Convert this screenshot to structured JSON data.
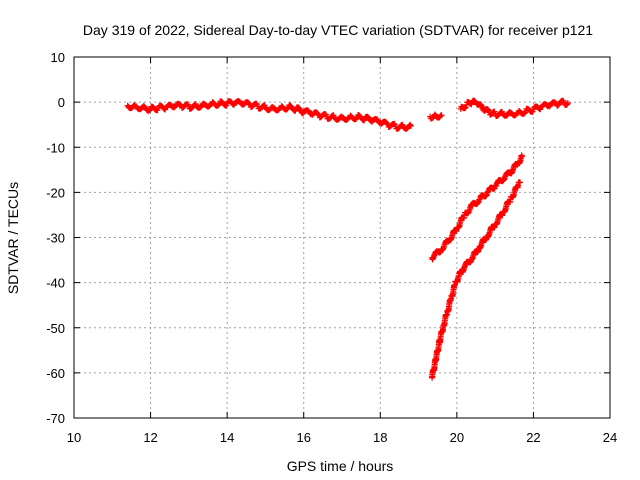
{
  "chart_data": {
    "type": "scatter",
    "title": "Day 319 of 2022, Sidereal Day-to-day VTEC variation (SDTVAR) for receiver p121",
    "xlabel": "GPS time / hours",
    "ylabel": "SDTVAR / TECUs",
    "xlim": [
      10,
      24
    ],
    "ylim": [
      -70,
      10
    ],
    "xticks": [
      10,
      12,
      14,
      16,
      18,
      20,
      22,
      24
    ],
    "yticks": [
      10,
      0,
      -10,
      -20,
      -30,
      -40,
      -50,
      -60,
      -70
    ],
    "grid": true,
    "marker": "plus",
    "color": "#ff0000",
    "series": [
      {
        "points": [
          [
            11.4,
            -0.8
          ],
          [
            11.6,
            -1.0
          ],
          [
            11.8,
            -1.2
          ],
          [
            12.0,
            -1.5
          ],
          [
            12.2,
            -1.3
          ],
          [
            12.4,
            -1.2
          ],
          [
            12.6,
            -0.9
          ],
          [
            12.8,
            -0.8
          ],
          [
            13.0,
            -1.0
          ],
          [
            13.2,
            -0.9
          ],
          [
            13.4,
            -0.6
          ],
          [
            13.6,
            -0.4
          ],
          [
            13.8,
            -0.3
          ],
          [
            14.0,
            -0.3
          ],
          [
            14.2,
            -0.2
          ],
          [
            14.4,
            -0.3
          ],
          [
            14.6,
            -0.6
          ],
          [
            14.8,
            -0.9
          ],
          [
            15.0,
            -1.2
          ],
          [
            15.2,
            -1.4
          ],
          [
            15.4,
            -1.3
          ],
          [
            15.6,
            -1.1
          ],
          [
            15.8,
            -1.5
          ],
          [
            16.0,
            -2.1
          ],
          [
            16.2,
            -2.5
          ],
          [
            16.4,
            -2.9
          ],
          [
            16.6,
            -3.2
          ],
          [
            16.8,
            -3.4
          ],
          [
            17.0,
            -3.5
          ],
          [
            17.2,
            -3.4
          ],
          [
            17.4,
            -3.3
          ],
          [
            17.6,
            -3.6
          ],
          [
            17.8,
            -4.0
          ],
          [
            18.0,
            -4.5
          ],
          [
            18.2,
            -5.0
          ],
          [
            18.4,
            -5.4
          ],
          [
            18.6,
            -5.5
          ],
          [
            18.8,
            -5.3
          ]
        ]
      },
      {
        "points": [
          [
            19.3,
            -3.2
          ],
          [
            19.45,
            -3.0
          ],
          [
            19.6,
            -2.9
          ],
          [
            20.1,
            -1.5
          ],
          [
            20.25,
            -0.6
          ],
          [
            20.4,
            0.0
          ],
          [
            20.55,
            -0.5
          ],
          [
            20.7,
            -1.6
          ],
          [
            20.85,
            -2.3
          ],
          [
            21.0,
            -2.6
          ],
          [
            21.2,
            -2.6
          ],
          [
            21.4,
            -2.5
          ],
          [
            21.6,
            -2.4
          ],
          [
            21.8,
            -2.0
          ],
          [
            22.0,
            -1.6
          ],
          [
            22.2,
            -1.1
          ],
          [
            22.4,
            -0.7
          ],
          [
            22.6,
            -0.4
          ],
          [
            22.8,
            -0.1
          ],
          [
            22.9,
            -0.2
          ]
        ]
      },
      {
        "points": [
          [
            19.35,
            -34.5
          ],
          [
            19.6,
            -32.5
          ],
          [
            19.8,
            -30.5
          ],
          [
            20.0,
            -28.0
          ],
          [
            20.2,
            -25.0
          ],
          [
            20.4,
            -23.0
          ],
          [
            20.6,
            -21.5
          ],
          [
            20.8,
            -20.0
          ],
          [
            21.0,
            -18.5
          ],
          [
            21.2,
            -17.0
          ],
          [
            21.4,
            -15.5
          ],
          [
            21.6,
            -13.5
          ],
          [
            21.7,
            -12.0
          ]
        ]
      },
      {
        "points": [
          [
            19.35,
            -61.0
          ],
          [
            19.45,
            -57.0
          ],
          [
            19.55,
            -53.0
          ],
          [
            19.65,
            -49.5
          ],
          [
            19.75,
            -46.5
          ],
          [
            19.85,
            -43.5
          ],
          [
            19.95,
            -40.5
          ],
          [
            20.05,
            -38.5
          ],
          [
            20.2,
            -36.5
          ],
          [
            20.4,
            -34.5
          ],
          [
            20.6,
            -32.0
          ],
          [
            20.8,
            -29.5
          ],
          [
            21.0,
            -27.0
          ],
          [
            21.2,
            -24.5
          ],
          [
            21.4,
            -21.5
          ],
          [
            21.6,
            -18.5
          ],
          [
            21.65,
            -17.8
          ]
        ]
      }
    ]
  }
}
